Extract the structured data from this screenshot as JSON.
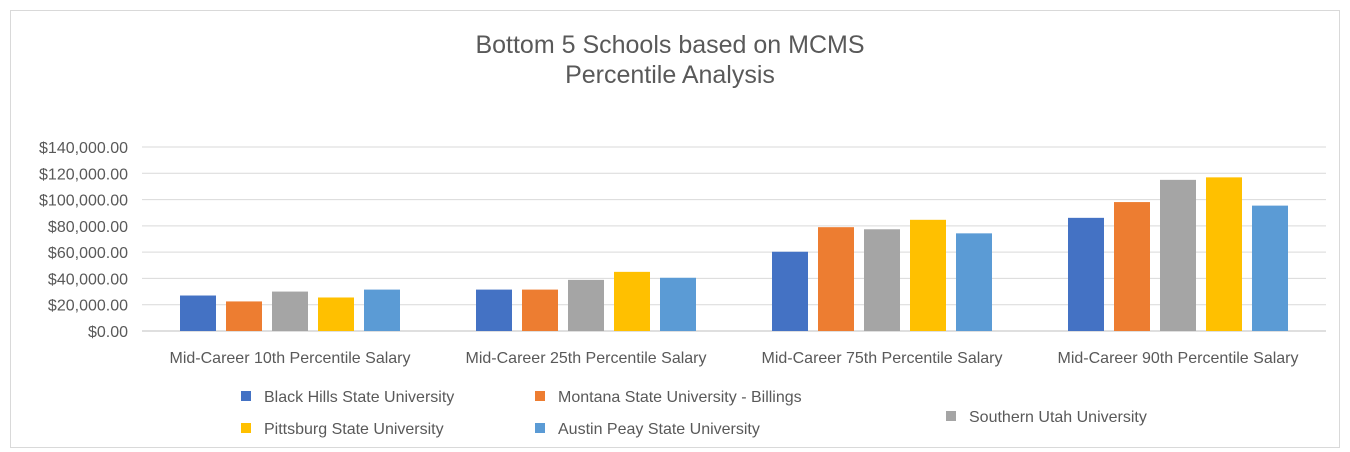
{
  "chart_data": {
    "type": "bar",
    "title_lines": [
      "Bottom 5 Schools based on MCMS",
      "Percentile Analysis"
    ],
    "categories": [
      "Mid-Career 10th Percentile Salary",
      "Mid-Career 25th Percentile Salary",
      "Mid-Career 75th Percentile Salary",
      "Mid-Career 90th Percentile Salary"
    ],
    "series": [
      {
        "name": "Black Hills State University",
        "color": "#4472C4",
        "values": [
          27000,
          31500,
          60300,
          86100
        ]
      },
      {
        "name": "Montana State University - Billings",
        "color": "#ED7D31",
        "values": [
          22500,
          31500,
          79000,
          98100
        ]
      },
      {
        "name": "Southern Utah University",
        "color": "#A5A5A5",
        "values": [
          30000,
          38900,
          77400,
          115000
        ]
      },
      {
        "name": "Pittsburg State University",
        "color": "#FFC000",
        "values": [
          25500,
          45000,
          84600,
          116900
        ]
      },
      {
        "name": "Austin Peay State University",
        "color": "#5B9BD5",
        "values": [
          31500,
          40500,
          74300,
          95400
        ]
      }
    ],
    "yticks": [
      "$0.00",
      "$20,000.00",
      "$40,000.00",
      "$60,000.00",
      "$80,000.00",
      "$100,000.00",
      "$120,000.00",
      "$140,000.00"
    ],
    "ylim": [
      0,
      140000
    ],
    "grid": true,
    "legend_position": "bottom"
  }
}
